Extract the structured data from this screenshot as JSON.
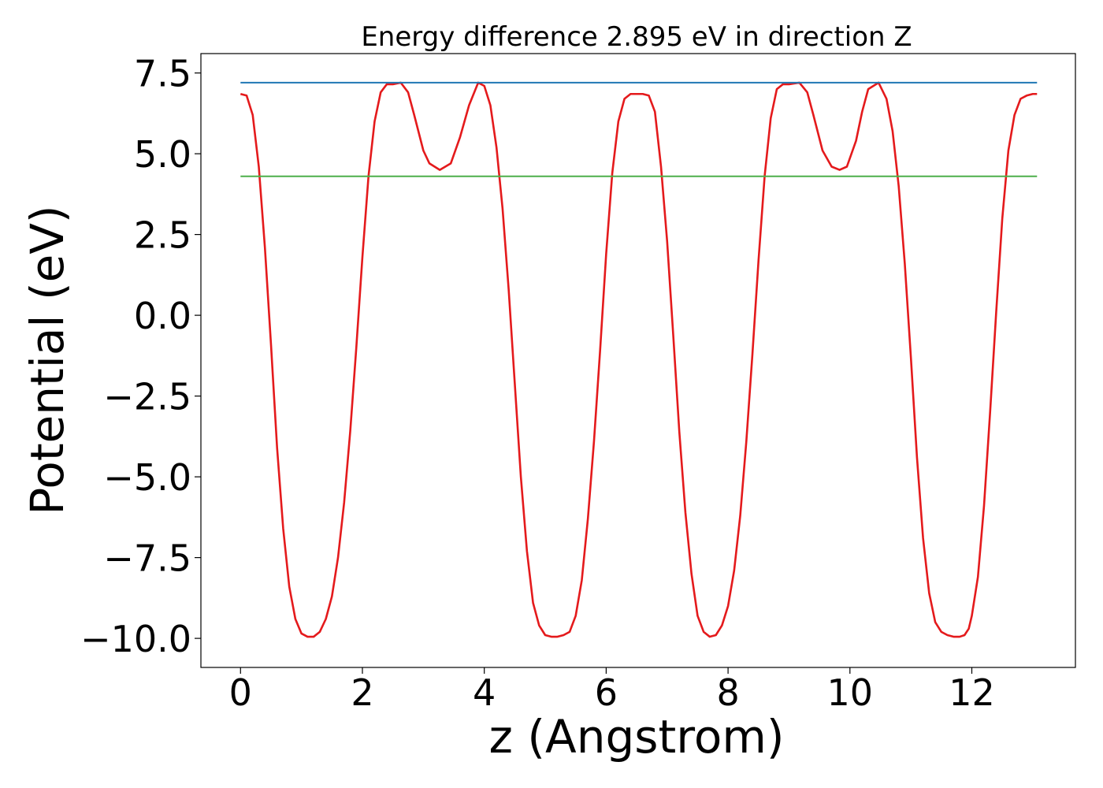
{
  "chart_data": {
    "type": "line",
    "title": "Energy difference 2.895 eV in direction Z",
    "xlabel": "z (Angstrom)",
    "ylabel": "Potential (eV)",
    "xlim": [
      -0.65,
      13.7
    ],
    "ylim": [
      -10.9,
      8.1
    ],
    "xticks": [
      0,
      2,
      4,
      6,
      8,
      10,
      12
    ],
    "yticks": [
      7.5,
      5.0,
      2.5,
      0.0,
      -2.5,
      -5.0,
      -7.5,
      -10.0
    ],
    "ytick_labels": [
      "7.5",
      "5.0",
      "2.5",
      "0.0",
      "−2.5",
      "−5.0",
      "−7.5",
      "−10.0"
    ],
    "grid": false,
    "series": [
      {
        "color": "#e41a1c",
        "x": [
          0,
          0.1,
          0.2,
          0.3,
          0.4,
          0.5,
          0.6,
          0.7,
          0.8,
          0.9,
          1.0,
          1.1,
          1.2,
          1.3,
          1.4,
          1.5,
          1.6,
          1.7,
          1.8,
          1.9,
          2.0,
          2.1,
          2.2,
          2.3,
          2.4,
          2.5,
          2.63,
          2.75,
          2.85,
          3.0,
          3.1,
          3.27,
          3.45,
          3.6,
          3.75,
          3.9,
          4.0,
          4.1,
          4.2,
          4.3,
          4.4,
          4.5,
          4.6,
          4.7,
          4.8,
          4.9,
          5.0,
          5.1,
          5.2,
          5.3,
          5.4,
          5.5,
          5.6,
          5.7,
          5.8,
          5.9,
          6.0,
          6.1,
          6.2,
          6.3,
          6.4,
          6.5,
          6.6,
          6.7,
          6.8,
          6.9,
          7.0,
          7.1,
          7.2,
          7.3,
          7.4,
          7.5,
          7.6,
          7.7,
          7.8,
          7.9,
          8.0,
          8.1,
          8.2,
          8.3,
          8.4,
          8.5,
          8.6,
          8.7,
          8.8,
          8.9,
          9.0,
          9.17,
          9.3,
          9.4,
          9.55,
          9.7,
          9.83,
          9.95,
          10.1,
          10.2,
          10.3,
          10.47,
          10.6,
          10.7,
          10.8,
          10.9,
          11.0,
          11.1,
          11.2,
          11.3,
          11.4,
          11.5,
          11.6,
          11.7,
          11.8,
          11.88,
          11.95,
          12.0,
          12.1,
          12.2,
          12.3,
          12.4,
          12.5,
          12.6,
          12.7,
          12.8,
          12.9,
          13.0,
          13.07
        ],
        "y": [
          6.85,
          6.8,
          6.2,
          4.6,
          2.1,
          -0.9,
          -4.1,
          -6.6,
          -8.4,
          -9.4,
          -9.85,
          -9.95,
          -9.95,
          -9.8,
          -9.4,
          -8.7,
          -7.5,
          -5.8,
          -3.6,
          -1.0,
          1.8,
          4.3,
          6.0,
          6.9,
          7.15,
          7.15,
          7.2,
          6.9,
          6.2,
          5.1,
          4.7,
          4.5,
          4.7,
          5.5,
          6.5,
          7.2,
          7.1,
          6.5,
          5.2,
          3.3,
          0.8,
          -2.1,
          -5.0,
          -7.3,
          -8.9,
          -9.6,
          -9.9,
          -9.95,
          -9.95,
          -9.9,
          -9.8,
          -9.3,
          -8.2,
          -6.3,
          -3.9,
          -1.1,
          1.9,
          4.4,
          6.0,
          6.7,
          6.85,
          6.85,
          6.85,
          6.8,
          6.3,
          4.6,
          2.3,
          -0.6,
          -3.6,
          -6.1,
          -8.0,
          -9.3,
          -9.8,
          -9.95,
          -9.9,
          -9.6,
          -9.0,
          -7.9,
          -6.2,
          -3.9,
          -1.2,
          1.7,
          4.3,
          6.1,
          7.0,
          7.15,
          7.15,
          7.2,
          6.9,
          6.2,
          5.1,
          4.6,
          4.5,
          4.6,
          5.4,
          6.3,
          7.0,
          7.2,
          6.7,
          5.7,
          4.0,
          1.6,
          -1.3,
          -4.4,
          -6.9,
          -8.6,
          -9.5,
          -9.8,
          -9.9,
          -9.95,
          -9.95,
          -9.9,
          -9.7,
          -9.3,
          -8.1,
          -5.9,
          -3.0,
          0.1,
          3.0,
          5.1,
          6.2,
          6.7,
          6.8,
          6.85,
          6.85
        ]
      },
      {
        "color": "#1f77b4",
        "x": [
          0,
          13.07
        ],
        "y": [
          7.2,
          7.2
        ]
      },
      {
        "color": "#4daf4a",
        "x": [
          0,
          13.07
        ],
        "y": [
          4.3,
          4.3
        ]
      }
    ]
  }
}
